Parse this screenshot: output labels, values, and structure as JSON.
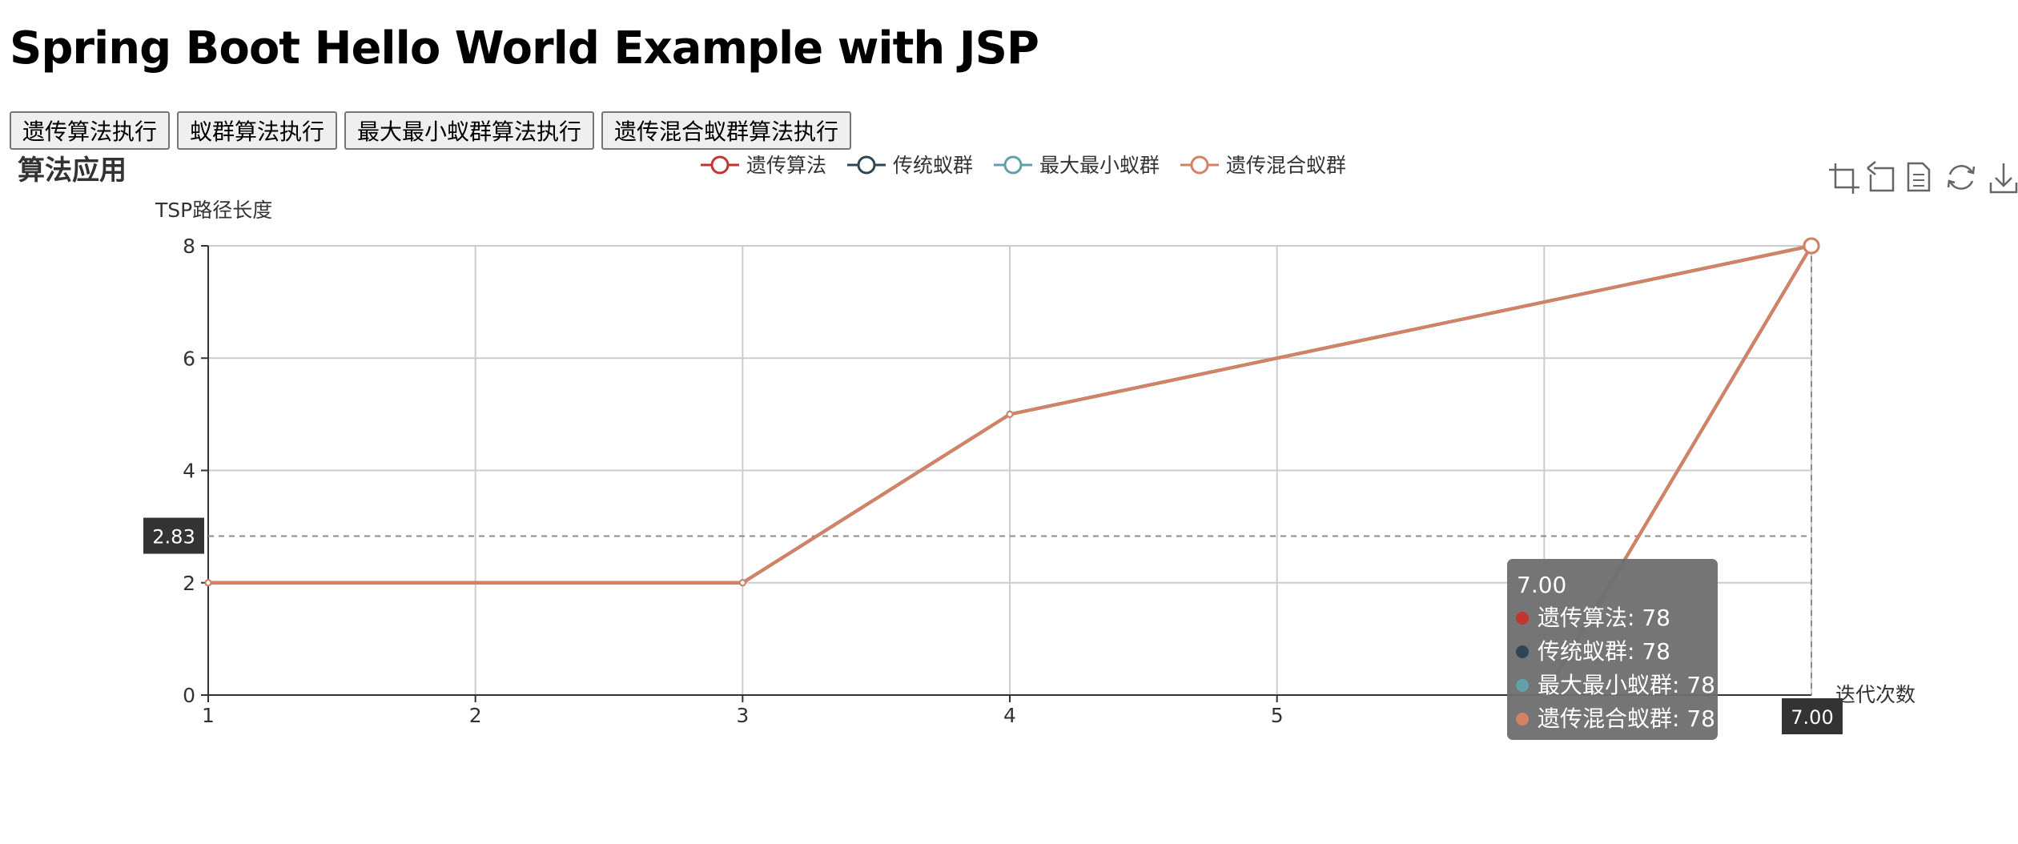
{
  "page": {
    "title": "Spring Boot Hello World Example with JSP"
  },
  "buttons": [
    {
      "label": "遗传算法执行"
    },
    {
      "label": "蚁群算法执行"
    },
    {
      "label": "最大最小蚁群算法执行"
    },
    {
      "label": "遗传混合蚁群算法执行"
    }
  ],
  "toolbox": [
    "zoom-icon",
    "zoom-reset-icon",
    "data-view-icon",
    "restore-icon",
    "save-image-icon"
  ],
  "colors": {
    "series": [
      "#c23531",
      "#2f4554",
      "#61a0a8",
      "#d48265"
    ],
    "tooltip_bg": "#6e6e6e",
    "pointer_label_bg": "#333333"
  },
  "chart_data": {
    "type": "line",
    "title": "算法应用",
    "xlabel": "迭代次数",
    "ylabel": "TSP路径长度",
    "x_axis_type": "value",
    "xlim": [
      1,
      7
    ],
    "ylim": [
      0,
      8
    ],
    "x_ticks": [
      1,
      2,
      3,
      4,
      5
    ],
    "y_ticks": [
      0,
      2,
      4,
      6,
      8
    ],
    "grid": true,
    "legend_position": "top-center",
    "series": [
      {
        "name": "遗传算法",
        "points": [
          [
            1,
            2
          ],
          [
            3,
            2
          ],
          [
            4,
            5
          ],
          [
            7,
            8
          ],
          [
            6,
            0
          ]
        ]
      },
      {
        "name": "传统蚁群",
        "points": [
          [
            1,
            2
          ],
          [
            3,
            2
          ],
          [
            4,
            5
          ],
          [
            7,
            8
          ],
          [
            6,
            0
          ]
        ]
      },
      {
        "name": "最大最小蚁群",
        "points": [
          [
            1,
            2
          ],
          [
            3,
            2
          ],
          [
            4,
            5
          ],
          [
            7,
            8
          ],
          [
            6,
            0
          ]
        ]
      },
      {
        "name": "遗传混合蚁群",
        "points": [
          [
            1,
            2
          ],
          [
            3,
            2
          ],
          [
            4,
            5
          ],
          [
            7,
            8
          ],
          [
            6,
            0
          ]
        ]
      }
    ],
    "axis_pointer": {
      "y_label": "2.83",
      "x_label": "7.00"
    },
    "tooltip": {
      "header": "7.00",
      "rows": [
        {
          "name": "遗传算法",
          "value": "78"
        },
        {
          "name": "传统蚁群",
          "value": "78"
        },
        {
          "name": "最大最小蚁群",
          "value": "78"
        },
        {
          "name": "遗传混合蚁群",
          "value": "78"
        }
      ]
    }
  }
}
